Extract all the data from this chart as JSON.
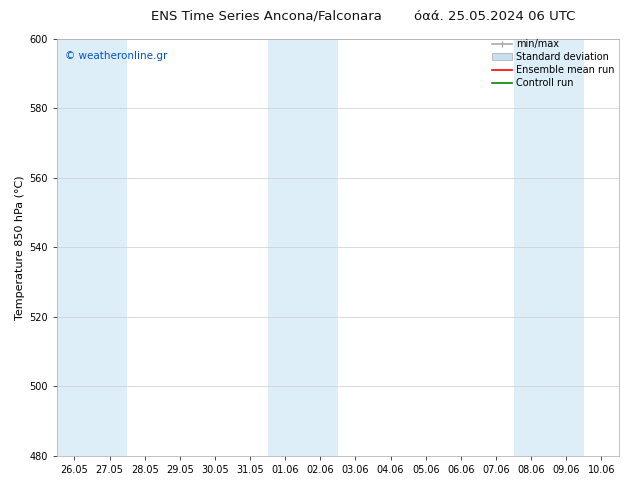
{
  "title_left": "ENS Time Series Ancona/Falconara",
  "title_right": "όαά. 25.05.2024 06 UTC",
  "ylabel": "Temperature 850 hPa (°C)",
  "watermark": "© weatheronline.gr",
  "watermark_color": "#0055cc",
  "ylim": [
    480,
    600
  ],
  "yticks": [
    480,
    500,
    520,
    540,
    560,
    580,
    600
  ],
  "xtick_labels": [
    "26.05",
    "27.05",
    "28.05",
    "29.05",
    "30.05",
    "31.05",
    "01.06",
    "02.06",
    "03.06",
    "04.06",
    "05.06",
    "06.06",
    "07.06",
    "08.06",
    "09.06",
    "10.06"
  ],
  "background_color": "#ffffff",
  "plot_bg_color": "#ffffff",
  "shaded_columns": [
    0,
    1,
    6,
    7,
    13,
    14
  ],
  "shaded_color": "#ddeef8",
  "legend_entries": [
    {
      "label": "min/max",
      "color": "#aaaaaa",
      "lw": 1.2
    },
    {
      "label": "Standard deviation",
      "color": "#c8dff0",
      "lw": 6
    },
    {
      "label": "Ensemble mean run",
      "color": "#ff0000",
      "lw": 1.2
    },
    {
      "label": "Controll run",
      "color": "#008800",
      "lw": 1.2
    }
  ],
  "grid_color": "#cccccc",
  "title_fontsize": 9.5,
  "tick_fontsize": 7,
  "ylabel_fontsize": 8,
  "watermark_fontsize": 7.5,
  "legend_fontsize": 7
}
